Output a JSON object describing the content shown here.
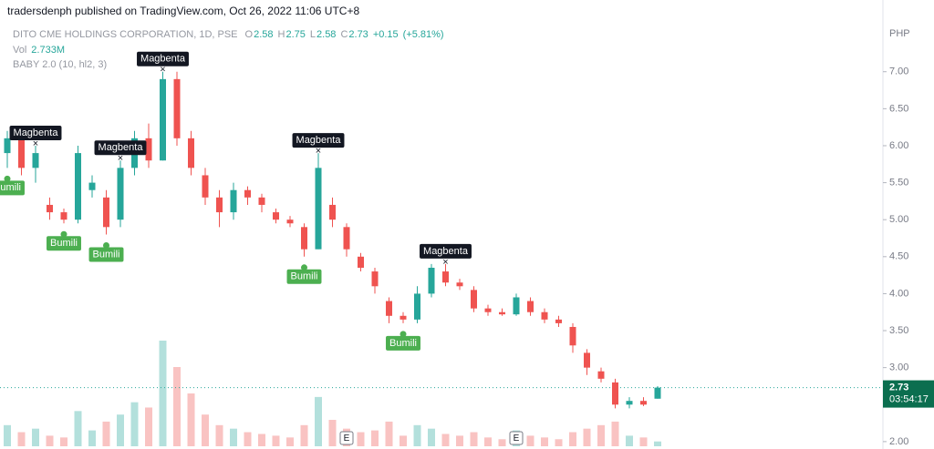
{
  "header": "tradersdenph published on TradingView.com, Oct 26, 2022 11:06 UTC+8",
  "chart_data": {
    "type": "candlestick",
    "symbol": "DITO CME HOLDINGS CORPORATION, 1D, PSE",
    "legend_keys": [
      "O",
      "H",
      "L",
      "C"
    ],
    "legend_values": [
      2.58,
      2.75,
      2.58,
      2.73
    ],
    "change": {
      "value": 0.15,
      "label": "+0.15"
    },
    "change_pct": {
      "value": 5.81,
      "label": "(+5.81%)"
    },
    "volume_label": "Vol",
    "volume_last": {
      "value": 2.733,
      "label": "2.733M"
    },
    "indicator": "BABY 2.0 (10, hl2, 3)",
    "currency": "PHP",
    "up_color": "#26a69a",
    "down_color": "#ef5350",
    "open": [
      5.9,
      6.1,
      5.7,
      5.2,
      5.1,
      5.0,
      5.4,
      5.3,
      5.0,
      5.7,
      6.1,
      5.8,
      6.9,
      6.1,
      5.6,
      5.3,
      5.1,
      5.4,
      5.3,
      5.1,
      5.0,
      4.9,
      4.6,
      5.2,
      4.9,
      4.5,
      4.3,
      3.9,
      3.7,
      3.65,
      4.0,
      4.3,
      4.15,
      4.05,
      3.8,
      3.75,
      3.72,
      3.9,
      3.75,
      3.65,
      3.55,
      3.2,
      2.95,
      2.8,
      2.5,
      2.55,
      2.58
    ],
    "high": [
      6.2,
      6.25,
      6.0,
      5.3,
      5.15,
      6.0,
      5.6,
      5.4,
      5.8,
      6.2,
      6.3,
      7.0,
      7.0,
      6.2,
      5.7,
      5.4,
      5.5,
      5.45,
      5.35,
      5.15,
      5.05,
      4.95,
      5.9,
      5.3,
      4.95,
      4.55,
      4.35,
      3.95,
      3.75,
      4.1,
      4.4,
      4.4,
      4.2,
      4.1,
      3.85,
      3.8,
      4.0,
      3.95,
      3.8,
      3.7,
      3.6,
      3.25,
      3.0,
      2.85,
      2.6,
      2.6,
      2.75
    ],
    "low": [
      5.7,
      5.6,
      5.5,
      5.0,
      4.95,
      4.95,
      5.3,
      4.8,
      4.9,
      5.6,
      5.7,
      5.8,
      6.0,
      5.6,
      5.2,
      4.9,
      5.0,
      5.2,
      5.1,
      4.95,
      4.9,
      4.5,
      4.6,
      4.9,
      4.5,
      4.3,
      4.0,
      3.6,
      3.6,
      3.6,
      3.95,
      4.1,
      4.05,
      3.75,
      3.7,
      3.7,
      3.7,
      3.7,
      3.6,
      3.55,
      3.2,
      2.9,
      2.8,
      2.45,
      2.45,
      2.48,
      2.58
    ],
    "close": [
      6.1,
      5.7,
      5.9,
      5.1,
      5.0,
      5.9,
      5.5,
      4.9,
      5.7,
      6.1,
      5.8,
      6.9,
      6.1,
      5.7,
      5.3,
      5.1,
      5.4,
      5.3,
      5.2,
      5.0,
      4.95,
      4.6,
      5.7,
      5.0,
      4.6,
      4.35,
      4.1,
      3.7,
      3.65,
      4.0,
      4.35,
      4.15,
      4.1,
      3.8,
      3.75,
      3.72,
      3.95,
      3.75,
      3.65,
      3.6,
      3.3,
      3.0,
      2.85,
      2.5,
      2.55,
      2.5,
      2.73
    ],
    "volume": [
      12,
      8,
      10,
      6,
      5,
      20,
      9,
      14,
      18,
      25,
      22,
      60,
      45,
      30,
      18,
      12,
      10,
      8,
      7,
      6,
      5,
      12,
      28,
      15,
      10,
      8,
      9,
      14,
      6,
      12,
      10,
      7,
      6,
      8,
      5,
      4,
      9,
      6,
      5,
      4,
      8,
      10,
      12,
      14,
      6,
      5,
      2.733
    ],
    "volume_lim": [
      0,
      150
    ],
    "ylim": [
      1.9,
      7.6
    ],
    "yticks": [
      {
        "value": 2,
        "label": "2.00"
      },
      {
        "value": 2.5,
        "label": "2.50"
      },
      {
        "value": 3,
        "label": "3.00"
      },
      {
        "value": 3.5,
        "label": "3.50"
      },
      {
        "value": 4,
        "label": "4.00"
      },
      {
        "value": 4.5,
        "label": "4.50"
      },
      {
        "value": 5,
        "label": "5.00"
      },
      {
        "value": 5.5,
        "label": "5.50"
      },
      {
        "value": 6,
        "label": "6.00"
      },
      {
        "value": 6.5,
        "label": "6.50"
      },
      {
        "value": 7,
        "label": "7.00"
      }
    ],
    "last_price": 2.73,
    "countdown": "03:54:17",
    "sell_signals": {
      "label": "Magbenta",
      "candles": [
        2,
        8,
        11,
        22,
        31
      ]
    },
    "buy_signals": {
      "label": "Bumili",
      "candles": [
        0,
        4,
        7,
        21,
        28
      ]
    },
    "earnings": {
      "label": "E",
      "candles": [
        24,
        36
      ]
    }
  }
}
